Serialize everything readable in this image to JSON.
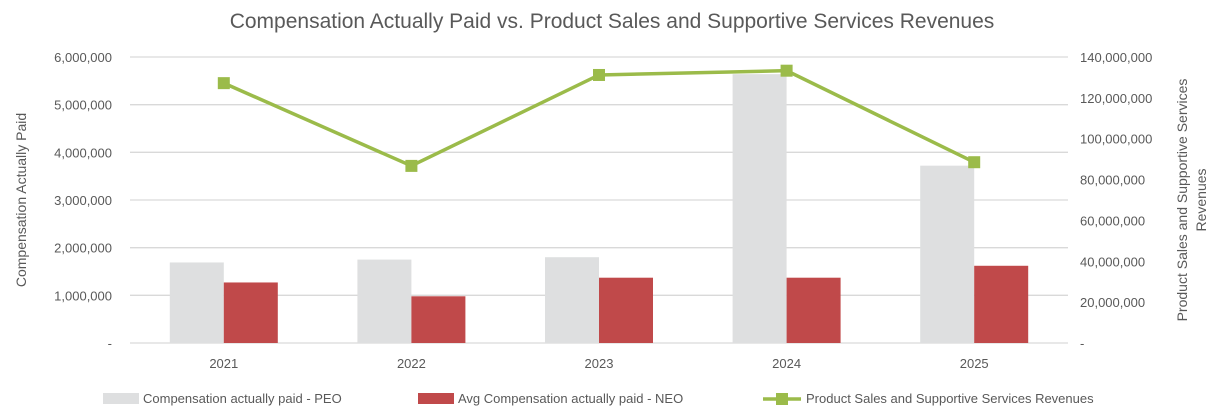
{
  "chart_data": {
    "type": "bar",
    "title": "Compensation Actually Paid vs. Product Sales and Supportive Services Revenues",
    "categories": [
      "2021",
      "2022",
      "2023",
      "2024",
      "2025"
    ],
    "ylabel": "Compensation Actually Paid",
    "y2label_line1": "Product Sales and Supportive Services",
    "y2label_line2": "Revenues",
    "ylim": [
      0,
      6000000
    ],
    "y2lim": [
      0,
      140000000
    ],
    "yticks": [
      "-",
      "1,000,000",
      "2,000,000",
      "3,000,000",
      "4,000,000",
      "5,000,000",
      "6,000,000"
    ],
    "y2ticks": [
      "-",
      "20,000,000",
      "40,000,000",
      "60,000,000",
      "80,000,000",
      "100,000,000",
      "120,000,000",
      "140,000,000"
    ],
    "grid": true,
    "legend_position": "bottom",
    "series": [
      {
        "name": "Compensation actually paid - PEO",
        "type": "bar",
        "axis": "left",
        "color": "#dedfe0",
        "values": [
          1690000,
          1750000,
          1800000,
          5640000,
          3720000
        ]
      },
      {
        "name": "Avg Compensation actually paid - NEO",
        "type": "bar",
        "axis": "left",
        "color": "#c0494a",
        "values": [
          1270000,
          980000,
          1370000,
          1370000,
          1620000
        ]
      },
      {
        "name": "Product Sales and Supportive Services Revenues",
        "type": "line",
        "axis": "right",
        "color": "#9bbb4a",
        "values": [
          127200000,
          86700000,
          131200000,
          133300000,
          88500000
        ]
      }
    ]
  }
}
